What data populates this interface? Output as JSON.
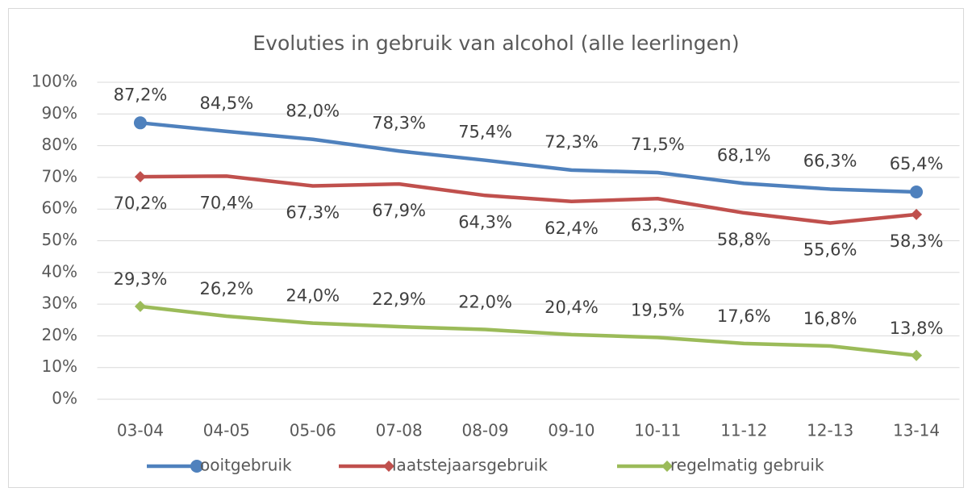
{
  "chart_data": {
    "type": "line",
    "title": "Evoluties in gebruik van alcohol (alle leerlingen)",
    "categories": [
      "03-04",
      "04-05",
      "05-06",
      "07-08",
      "08-09",
      "09-10",
      "10-11",
      "11-12",
      "12-13",
      "13-14"
    ],
    "series": [
      {
        "name": "ooitgebruik",
        "color": "#4f81bd",
        "values": [
          87.2,
          84.5,
          82.0,
          78.3,
          75.4,
          72.3,
          71.5,
          68.1,
          66.3,
          65.4
        ],
        "value_labels": [
          "87,2%",
          "84,5%",
          "82,0%",
          "78,3%",
          "75,4%",
          "72,3%",
          "71,5%",
          "68,1%",
          "66,3%",
          "65,4%"
        ]
      },
      {
        "name": "laatstejaarsgebruik",
        "color": "#c0504d",
        "values": [
          70.2,
          70.4,
          67.3,
          67.9,
          64.3,
          62.4,
          63.3,
          58.8,
          55.6,
          58.3
        ],
        "value_labels": [
          "70,2%",
          "70,4%",
          "67,3%",
          "67,9%",
          "64,3%",
          "62,4%",
          "63,3%",
          "58,8%",
          "55,6%",
          "58,3%"
        ]
      },
      {
        "name": "regelmatig gebruik",
        "color": "#9bbb59",
        "values": [
          29.3,
          26.2,
          24.0,
          22.9,
          22.0,
          20.4,
          19.5,
          17.6,
          16.8,
          13.8
        ],
        "value_labels": [
          "29,3%",
          "26,2%",
          "24,0%",
          "22,9%",
          "22,0%",
          "20,4%",
          "19,5%",
          "17,6%",
          "16,8%",
          "13,8%"
        ]
      }
    ],
    "ylim": [
      0,
      100
    ],
    "yticks": [
      {
        "value": 0,
        "label": "0%"
      },
      {
        "value": 10,
        "label": "10%"
      },
      {
        "value": 20,
        "label": "20%"
      },
      {
        "value": 30,
        "label": "30%"
      },
      {
        "value": 40,
        "label": "40%"
      },
      {
        "value": 50,
        "label": "50%"
      },
      {
        "value": 60,
        "label": "60%"
      },
      {
        "value": 70,
        "label": "70%"
      },
      {
        "value": 80,
        "label": "80%"
      },
      {
        "value": 90,
        "label": "90%"
      },
      {
        "value": 100,
        "label": "100%"
      }
    ],
    "grid": true,
    "legend": "bottom"
  }
}
